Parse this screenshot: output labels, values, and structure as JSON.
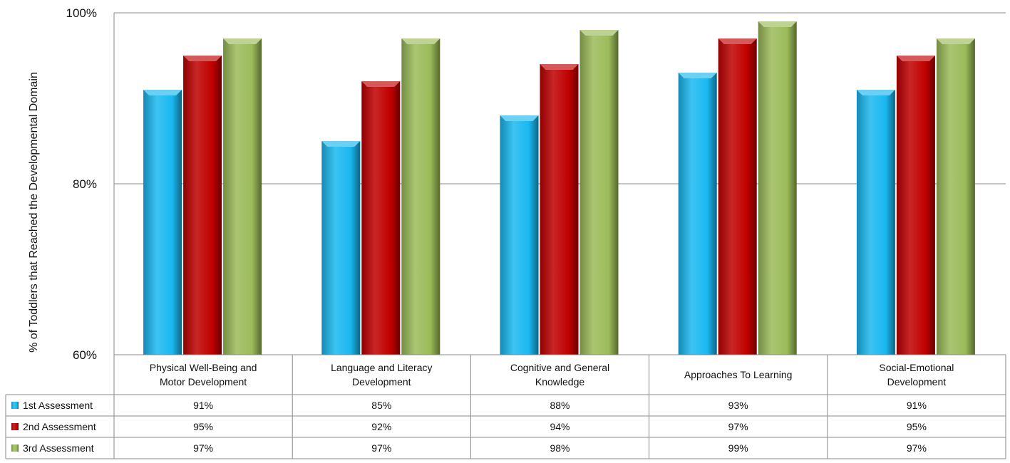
{
  "chart_data": {
    "type": "bar",
    "categories": [
      [
        "Physical  Well-Being and",
        "Motor Development"
      ],
      [
        "Language and Literacy",
        "Development"
      ],
      [
        "Cognitive and General",
        "Knowledge"
      ],
      [
        "Approaches To Learning"
      ],
      [
        "Social-Emotional",
        "Development"
      ]
    ],
    "series": [
      {
        "name": "1st Assessment",
        "values": [
          91,
          85,
          88,
          93,
          91
        ],
        "labels": [
          "91%",
          "85%",
          "88%",
          "93%",
          "91%"
        ],
        "color": "#1ab8f0"
      },
      {
        "name": "2nd Assessment",
        "values": [
          95,
          92,
          94,
          97,
          95
        ],
        "labels": [
          "95%",
          "92%",
          "94%",
          "97%",
          "95%"
        ],
        "color": "#c00000"
      },
      {
        "name": "3rd Assessment",
        "values": [
          97,
          97,
          98,
          99,
          97
        ],
        "labels": [
          "97%",
          "97%",
          "98%",
          "99%",
          "97%"
        ],
        "color": "#9bbb59"
      }
    ],
    "ylabel": "% of Toddlers that Reached the Developmental Domain",
    "ylim": [
      60,
      100
    ],
    "yticks": [
      60,
      80,
      100
    ],
    "ytick_labels": [
      "60%",
      "80%",
      "100%"
    ],
    "grid": true,
    "legend": "data-table-left"
  }
}
